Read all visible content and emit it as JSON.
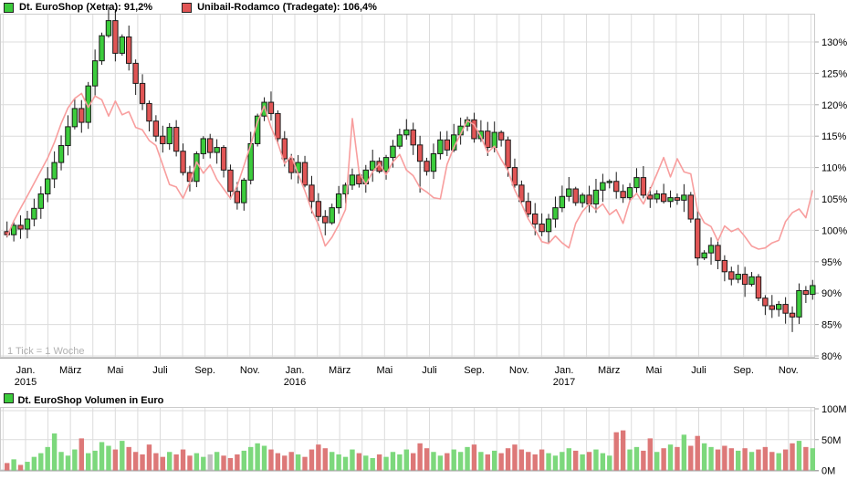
{
  "legend": {
    "series1": {
      "label": "Dt. EuroShop (Xetra): 91,2%",
      "color": "#3ccc3c"
    },
    "series2": {
      "label": "Unibail-Rodamco (Tradegate): 106,4%",
      "color": "#e25555"
    }
  },
  "volume_legend": {
    "label": "Dt. EuroShop Volumen in Euro",
    "color": "#3ccc3c"
  },
  "tick_note": "1 Tick = 1 Woche",
  "price_axis": {
    "ticks": [
      {
        "value": 130,
        "label": "130%"
      },
      {
        "value": 125,
        "label": "125%"
      },
      {
        "value": 120,
        "label": "120%"
      },
      {
        "value": 115,
        "label": "115%"
      },
      {
        "value": 110,
        "label": "110%"
      },
      {
        "value": 105,
        "label": "105%"
      },
      {
        "value": 100,
        "label": "100%"
      },
      {
        "value": 95,
        "label": "95%"
      },
      {
        "value": 90,
        "label": "90%"
      },
      {
        "value": 85,
        "label": "85%"
      },
      {
        "value": 80,
        "label": "80%"
      }
    ]
  },
  "volume_axis": {
    "ticks": [
      {
        "value": 100,
        "label": "100M"
      },
      {
        "value": 50,
        "label": "50M"
      },
      {
        "value": 0,
        "label": "0M"
      }
    ]
  },
  "x_axis": {
    "labels": [
      {
        "month": "Jan.",
        "year": "2015"
      },
      {
        "month": "März"
      },
      {
        "month": "Mai"
      },
      {
        "month": "Juli"
      },
      {
        "month": "Sep."
      },
      {
        "month": "Nov."
      },
      {
        "month": "Jan.",
        "year": "2016"
      },
      {
        "month": "März"
      },
      {
        "month": "Mai"
      },
      {
        "month": "Juli"
      },
      {
        "month": "Sep."
      },
      {
        "month": "Nov."
      },
      {
        "month": "Jan.",
        "year": "2017"
      },
      {
        "month": "März"
      },
      {
        "month": "Mai"
      },
      {
        "month": "Juli"
      },
      {
        "month": "Sep."
      },
      {
        "month": "Nov."
      }
    ]
  },
  "colors": {
    "candle_up": "#3ccc3c",
    "candle_down": "#e05555",
    "candle_border": "#1a1a1a",
    "wick": "#1a1a1a",
    "unibail_line": "#f89e9e",
    "volume_up": "#7cd87c",
    "volume_down": "#dd7878",
    "volume_neutral": "#bfbfbf",
    "grid": "#dcdcdc",
    "axis": "#a8a8a8",
    "tick_text": "#000000",
    "note_text": "#b0b0b0"
  },
  "chart_data": {
    "type": [
      "candlestick",
      "line",
      "bar"
    ],
    "title": "Dt. EuroShop vs. Unibail-Rodamco, indexiert in %, mit Volumen",
    "tick_interval": "1 Woche",
    "x_range": [
      "Jan. 2015",
      "Dez. 2017"
    ],
    "price_ylim": [
      80,
      130
    ],
    "price_unit": "%",
    "volume_ylim": [
      0,
      100
    ],
    "volume_unit": "Mio. Euro",
    "legend_position": "top-left",
    "grid": true,
    "first_open": 99.8,
    "euroShop_close_pct": [
      99.3,
      100.8,
      100.2,
      101.8,
      103.5,
      105.8,
      108.2,
      110.8,
      113.5,
      116.5,
      119.4,
      117.2,
      123.0,
      127.0,
      131.0,
      133.4,
      128.2,
      130.8,
      126.6,
      123.4,
      120.2,
      117.4,
      115.0,
      113.8,
      116.4,
      112.6,
      109.2,
      107.8,
      112.2,
      114.6,
      112.4,
      113.2,
      109.6,
      106.2,
      104.4,
      108.0,
      113.8,
      118.2,
      120.4,
      118.6,
      114.6,
      111.4,
      109.2,
      110.8,
      107.2,
      104.6,
      102.2,
      101.2,
      103.6,
      105.8,
      107.2,
      108.8,
      107.4,
      109.6,
      111.0,
      109.4,
      111.6,
      113.4,
      115.2,
      116.0,
      113.6,
      111.0,
      109.4,
      112.2,
      114.4,
      112.8,
      115.2,
      116.6,
      117.6,
      114.6,
      115.8,
      113.2,
      115.6,
      114.4,
      110.0,
      107.2,
      104.6,
      102.6,
      101.0,
      99.8,
      101.8,
      103.6,
      105.4,
      106.6,
      104.4,
      105.6,
      104.2,
      106.4,
      107.6,
      107.8,
      106.2,
      105.2,
      106.8,
      108.4,
      105.6,
      105.0,
      105.8,
      104.6,
      105.2,
      104.8,
      105.6,
      101.8,
      95.6,
      96.4,
      97.6,
      95.2,
      93.4,
      92.2,
      93.0,
      91.4,
      92.6,
      89.2,
      88.0,
      87.4,
      88.2,
      86.8,
      86.2,
      90.4,
      89.8,
      91.2
    ],
    "unibail_pct": [
      99.0,
      101.5,
      103.5,
      105.5,
      107.5,
      109.5,
      111.5,
      114.0,
      117.0,
      119.5,
      121.0,
      121.8,
      119.6,
      121.4,
      120.8,
      118.2,
      120.6,
      118.4,
      118.9,
      116.4,
      116.0,
      114.3,
      113.5,
      110.4,
      107.3,
      106.9,
      105.1,
      107.6,
      110.9,
      109.1,
      110.4,
      108.1,
      106.6,
      105.1,
      107.1,
      110.3,
      113.6,
      117.3,
      119.8,
      116.4,
      113.9,
      110.6,
      111.8,
      109.0,
      106.3,
      103.2,
      100.9,
      97.5,
      98.9,
      100.9,
      103.3,
      117.8,
      109.2,
      107.3,
      109.3,
      110.6,
      108.9,
      110.9,
      112.1,
      109.6,
      108.7,
      106.8,
      106.1,
      105.2,
      105.0,
      110.5,
      113.2,
      115.3,
      117.5,
      116.8,
      114.9,
      112.4,
      113.4,
      111.3,
      109.5,
      106.4,
      104.2,
      101.8,
      100.1,
      98.2,
      97.9,
      99.1,
      98.0,
      97.2,
      101.1,
      103.0,
      104.2,
      103.3,
      104.2,
      102.5,
      103.3,
      101.1,
      104.7,
      105.9,
      104.2,
      106.5,
      109.0,
      111.6,
      108.5,
      111.4,
      109.3,
      109.0,
      103.2,
      101.2,
      100.6,
      98.3,
      100.7,
      99.8,
      100.3,
      99.0,
      97.5,
      97.0,
      97.2,
      98.0,
      98.4,
      101.4,
      102.8,
      103.4,
      102.0,
      106.4
    ],
    "volume_m": [
      12,
      18,
      9,
      14,
      22,
      28,
      38,
      60,
      30,
      24,
      34,
      52,
      28,
      32,
      46,
      40,
      34,
      48,
      38,
      30,
      26,
      42,
      28,
      22,
      30,
      26,
      34,
      24,
      28,
      22,
      26,
      30,
      24,
      20,
      26,
      32,
      38,
      44,
      40,
      34,
      28,
      24,
      30,
      26,
      22,
      34,
      42,
      36,
      30,
      26,
      22,
      34,
      28,
      24,
      20,
      26,
      22,
      30,
      26,
      34,
      28,
      44,
      36,
      30,
      24,
      28,
      34,
      30,
      38,
      42,
      30,
      26,
      32,
      28,
      36,
      42,
      34,
      30,
      26,
      34,
      28,
      24,
      30,
      36,
      32,
      26,
      30,
      34,
      28,
      24,
      62,
      65,
      34,
      38,
      32,
      52,
      30,
      36,
      42,
      38,
      58,
      40,
      56,
      44,
      38,
      34,
      40,
      36,
      32,
      36,
      30,
      34,
      38,
      30,
      28,
      34,
      44,
      48,
      38,
      36
    ],
    "wick_overrides": {
      "15": {
        "h": 2.2
      },
      "16": {
        "h": 1.8
      },
      "47": {
        "l": 2.0
      },
      "61": {
        "l": 5.0
      },
      "102": {
        "l": 1.2
      },
      "109": {
        "l": 2.0
      },
      "116": {
        "l": 2.4
      }
    },
    "gray_volume_indices": [
      30
    ]
  }
}
